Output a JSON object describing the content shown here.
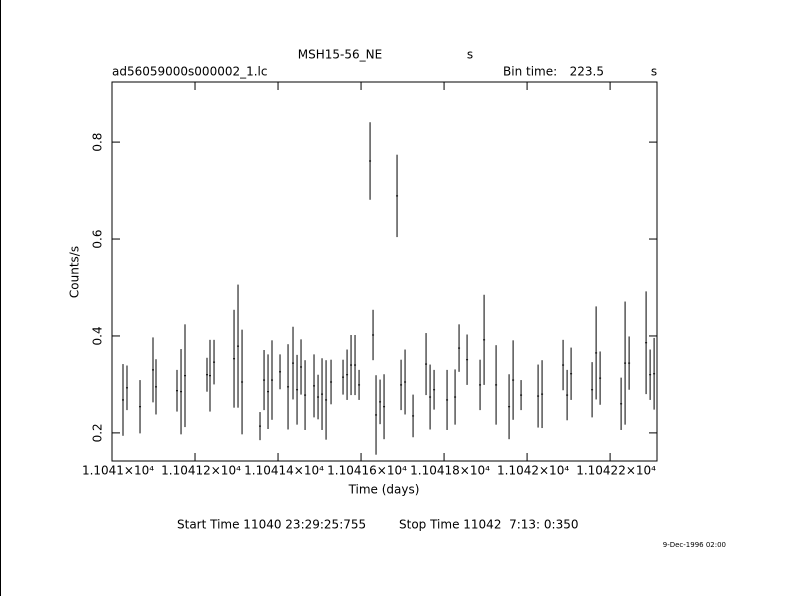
{
  "chart_data": {
    "type": "scatter",
    "title": "MSH15-56_NE",
    "title_units": "s",
    "file": "ad56059000s000002_1.lc",
    "bin_time_label": "Bin time:",
    "bin_time": 223.5,
    "bin_time_units": "s",
    "x_label": "Time (days)",
    "y_label": "Counts/s",
    "start_time": "Start Time 11040 23:29:25:755",
    "stop_time": "Stop Time 11042  7:13: 0:350",
    "date": "9-Dec-1996 02:00",
    "color": "#000000",
    "x": [
      11041.0265,
      11041.0361,
      11041.0675,
      11041.0988,
      11041.106,
      11041.1566,
      11041.1663,
      11041.1759,
      11041.2289,
      11041.2361,
      11041.2458,
      11041.294,
      11041.3036,
      11041.3133,
      11041.3566,
      11041.3663,
      11041.3759,
      11041.3855,
      11041.4048,
      11041.4241,
      11041.4361,
      11041.4458,
      11041.4554,
      11041.4651,
      11041.4867,
      11041.4964,
      11041.506,
      11041.5157,
      11041.5277,
      11041.5566,
      11041.5663,
      11041.5759,
      11041.5855,
      11041.5952,
      11041.6217,
      11041.6289,
      11041.6361,
      11041.6458,
      11041.6554,
      11041.6867,
      11041.6964,
      11041.706,
      11041.7253,
      11041.7566,
      11041.7663,
      11041.7759,
      11041.8072,
      11041.8265,
      11041.8361,
      11041.8554,
      11041.8867,
      11041.8964,
      11041.9253,
      11041.9566,
      11041.9663,
      11041.9855,
      11042.0265,
      11042.0361,
      11042.0867,
      11042.0964,
      11042.106,
      11042.1566,
      11042.1663,
      11042.1759,
      11042.2265,
      11042.2361,
      11042.2458,
      11042.2867,
      11042.2964,
      11042.306
    ],
    "values": [
      0.268,
      0.293,
      0.254,
      0.33,
      0.295,
      0.287,
      0.285,
      0.318,
      0.32,
      0.318,
      0.346,
      0.353,
      0.379,
      0.305,
      0.214,
      0.309,
      0.285,
      0.309,
      0.326,
      0.295,
      0.344,
      0.289,
      0.336,
      0.278,
      0.297,
      0.274,
      0.28,
      0.268,
      0.305,
      0.315,
      0.32,
      0.34,
      0.34,
      0.299,
      0.761,
      0.402,
      0.237,
      0.264,
      0.254,
      0.689,
      0.299,
      0.305,
      0.235,
      0.342,
      0.274,
      0.289,
      0.268,
      0.274,
      0.375,
      0.351,
      0.299,
      0.392,
      0.299,
      0.254,
      0.309,
      0.278,
      0.276,
      0.28,
      0.34,
      0.278,
      0.322,
      0.289,
      0.365,
      0.313,
      0.26,
      0.344,
      0.344,
      0.386,
      0.32,
      0.322
    ],
    "errors": [
      0.074,
      0.046,
      0.055,
      0.067,
      0.057,
      0.043,
      0.088,
      0.106,
      0.035,
      0.074,
      0.046,
      0.101,
      0.127,
      0.108,
      0.029,
      0.062,
      0.077,
      0.082,
      0.036,
      0.088,
      0.075,
      0.072,
      0.057,
      0.072,
      0.065,
      0.046,
      0.074,
      0.082,
      0.046,
      0.036,
      0.052,
      0.062,
      0.062,
      0.031,
      0.08,
      0.052,
      0.082,
      0.046,
      0.067,
      0.085,
      0.052,
      0.067,
      0.044,
      0.064,
      0.067,
      0.041,
      0.062,
      0.057,
      0.049,
      0.052,
      0.052,
      0.093,
      0.082,
      0.067,
      0.082,
      0.031,
      0.065,
      0.07,
      0.052,
      0.052,
      0.054,
      0.057,
      0.096,
      0.055,
      0.054,
      0.127,
      0.055,
      0.106,
      0.052,
      0.074
    ],
    "xlim": [
      11041,
      11042.313
    ],
    "ylim": [
      0.142,
      0.924
    ],
    "xticks": [
      {
        "value": 11041,
        "label": "1.1041×10⁴"
      },
      {
        "value": 11041.2,
        "label": "1.10412×10⁴"
      },
      {
        "value": 11041.4,
        "label": "1.10414×10⁴"
      },
      {
        "value": 11041.6,
        "label": "1.10416×10⁴"
      },
      {
        "value": 11041.8,
        "label": "1.10418×10⁴"
      },
      {
        "value": 11042,
        "label": "1.1042×10⁴"
      },
      {
        "value": 11042.2,
        "label": "1.10422×10⁴"
      }
    ],
    "yticks": [
      0.2,
      0.4,
      0.6,
      0.8
    ]
  }
}
